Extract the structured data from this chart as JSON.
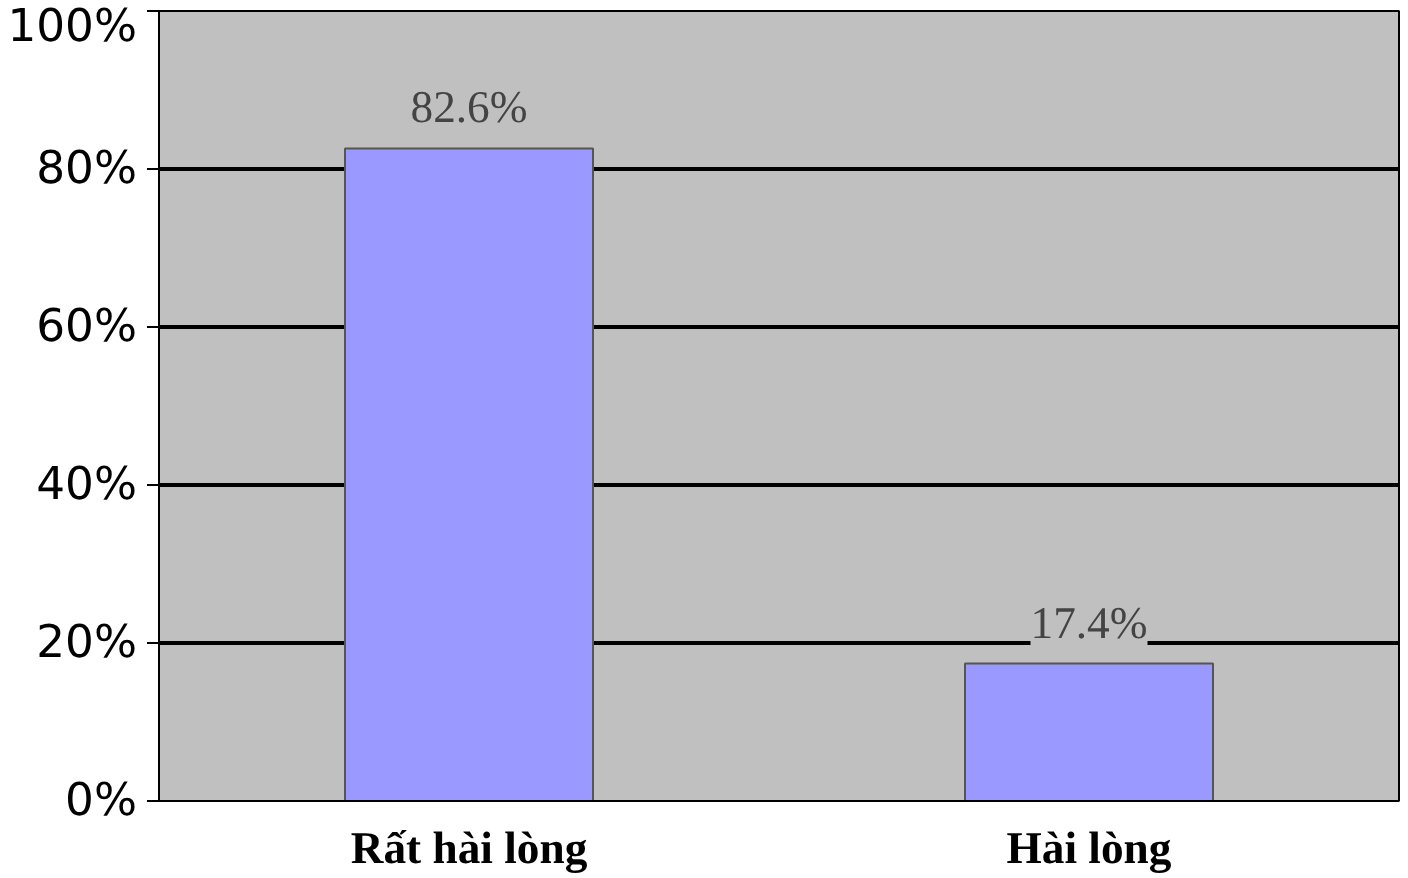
{
  "chart_data": {
    "type": "bar",
    "categories": [
      "Rất hài lòng",
      "Hài lòng"
    ],
    "values": [
      82.6,
      17.4
    ],
    "color": "#9999ff",
    "value_labels": [
      "82.6%",
      "17.4%"
    ],
    "ylim": [
      0,
      100
    ],
    "yticks": [
      {
        "value": 0,
        "label": "0%"
      },
      {
        "value": 20,
        "label": "20%"
      },
      {
        "value": 40,
        "label": "40%"
      },
      {
        "value": 60,
        "label": "60%"
      },
      {
        "value": 80,
        "label": "80%"
      },
      {
        "value": 100,
        "label": "100%"
      }
    ],
    "grid": "y"
  }
}
